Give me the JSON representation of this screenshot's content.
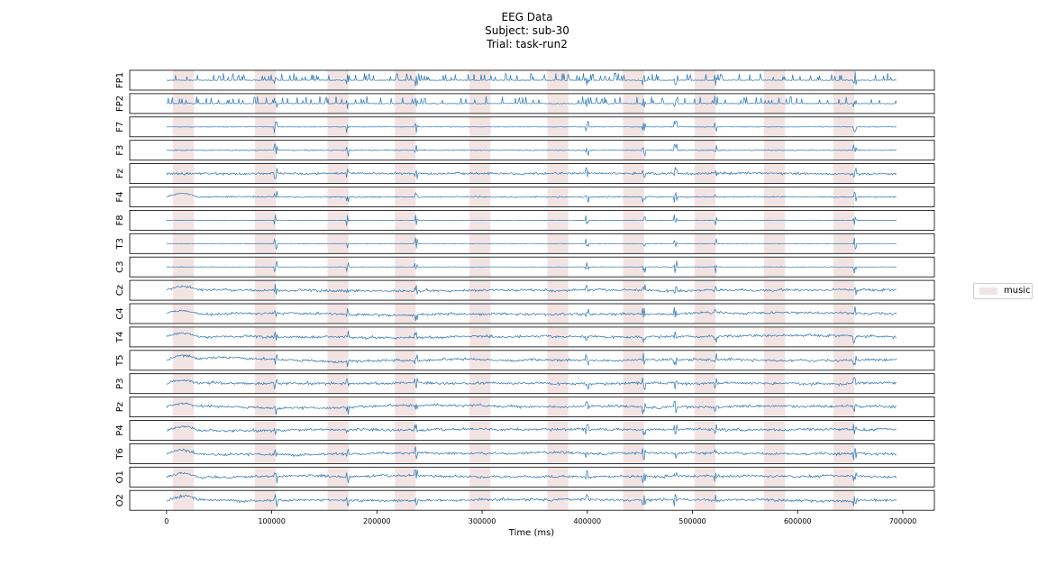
{
  "figure": {
    "title_lines": [
      "EEG Data",
      "Subject: sub-30",
      "Trial: task-run2"
    ]
  },
  "colors": {
    "trace": "#2a77b4",
    "music_band": "#f3e4e4",
    "axes_frame": "#000000"
  },
  "chart_data": {
    "type": "line",
    "title": "EEG Data\nSubject: sub-30\nTrial: task-run2",
    "xlabel": "Time (ms)",
    "ylabel": "",
    "xlim": [
      -35000,
      730000
    ],
    "xticks": [
      0,
      100000,
      200000,
      300000,
      400000,
      500000,
      600000,
      700000
    ],
    "xtick_labels": [
      "0",
      "100000",
      "200000",
      "300000",
      "400000",
      "500000",
      "600000",
      "700000"
    ],
    "signal_range": [
      0,
      694000
    ],
    "grid": false,
    "legend": {
      "placement": "right",
      "entries": [
        {
          "label": "music",
          "color": "#f3e4e4"
        }
      ]
    },
    "channels": [
      "FP1",
      "FP2",
      "F7",
      "F3",
      "Fz",
      "F4",
      "F8",
      "T3",
      "C3",
      "Cz",
      "C4",
      "T4",
      "T5",
      "P3",
      "Pz",
      "P4",
      "T6",
      "O1",
      "O2"
    ],
    "music_intervals": [
      [
        6000,
        26000
      ],
      [
        84000,
        104000
      ],
      [
        153000,
        173000
      ],
      [
        217000,
        237000
      ],
      [
        288000,
        308000
      ],
      [
        362000,
        382000
      ],
      [
        434000,
        454000
      ],
      [
        502000,
        522000
      ],
      [
        568000,
        588000
      ],
      [
        634000,
        654000
      ]
    ],
    "transient_events_ms": [
      104000,
      172000,
      237000,
      400000,
      454000,
      484000,
      522000,
      654000
    ],
    "early_drift_ms": [
      0,
      30000
    ]
  }
}
